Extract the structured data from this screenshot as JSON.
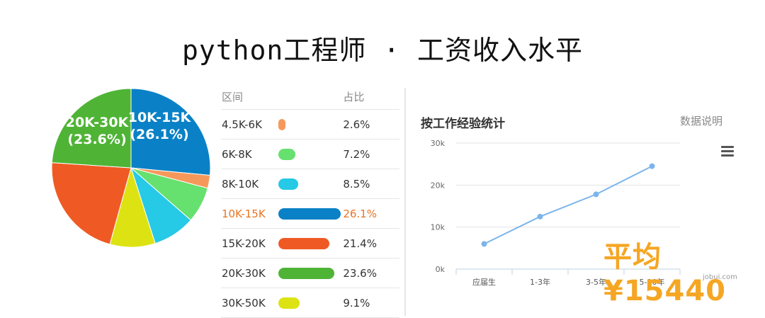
{
  "title": "python工程师 · 工资收入水平",
  "table": {
    "headers": {
      "range": "区间",
      "share": "占比"
    },
    "rows": [
      {
        "range": "4.5K-6K",
        "pct": "2.6%",
        "value": 2.6,
        "color": "#f7985b",
        "highlight": false
      },
      {
        "range": "6K-8K",
        "pct": "7.2%",
        "value": 7.2,
        "color": "#66e06e",
        "highlight": false
      },
      {
        "range": "8K-10K",
        "pct": "8.5%",
        "value": 8.5,
        "color": "#26c9e6",
        "highlight": false
      },
      {
        "range": "10K-15K",
        "pct": "26.1%",
        "value": 26.1,
        "color": "#0a81c6",
        "highlight": true
      },
      {
        "range": "15K-20K",
        "pct": "21.4%",
        "value": 21.4,
        "color": "#ef5a24",
        "highlight": false
      },
      {
        "range": "20K-30K",
        "pct": "23.6%",
        "value": 23.6,
        "color": "#4fb436",
        "highlight": false
      },
      {
        "range": "30K-50K",
        "pct": "9.1%",
        "value": 9.1,
        "color": "#dde313",
        "highlight": false
      }
    ]
  },
  "pie_labels": [
    {
      "line1": "10K-15K",
      "line2": "(26.1%)"
    },
    {
      "line1": "20K-30K",
      "line2": "(23.6%)"
    }
  ],
  "line_panel": {
    "title": "按工作经验统计",
    "link": "数据说明",
    "average": "平均¥15440",
    "source": "jobui.com"
  },
  "chart_data": [
    {
      "type": "pie",
      "title": "python工程师 · 工资收入水平",
      "categories": [
        "10K-15K",
        "4.5K-6K",
        "6K-8K",
        "8K-10K",
        "30K-50K",
        "15K-20K",
        "20K-30K"
      ],
      "values": [
        26.1,
        2.6,
        7.2,
        8.5,
        9.1,
        21.4,
        23.6
      ],
      "colors": [
        "#0a81c6",
        "#f7985b",
        "#66e06e",
        "#26c9e6",
        "#dde313",
        "#ef5a24",
        "#4fb436"
      ]
    },
    {
      "type": "line",
      "title": "按工作经验统计",
      "categories": [
        "应届生",
        "1-3年",
        "3-5年",
        "5-10年"
      ],
      "values": [
        6000,
        12500,
        17800,
        24500
      ],
      "ylim": [
        0,
        30000
      ],
      "yticks": [
        "0k",
        "10k",
        "20k",
        "30k"
      ],
      "grid": true,
      "color": "#7cb5ec"
    }
  ]
}
